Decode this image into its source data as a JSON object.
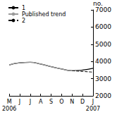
{
  "chart_data": {
    "type": "line",
    "categories": [
      "M\n2006",
      "J",
      "J",
      "A",
      "S",
      "O",
      "N",
      "D",
      "J\n2007"
    ],
    "series": [
      {
        "name": "1",
        "color": "#000000",
        "line_style": "solid",
        "values": [
          3800,
          3920,
          3950,
          3850,
          3700,
          3560,
          3460,
          3500,
          3600
        ]
      },
      {
        "name": "Published trend",
        "color": "#9a9a9a",
        "line_style": "solid",
        "values": [
          3800,
          3920,
          3950,
          3850,
          3700,
          3560,
          3460,
          3470,
          null
        ]
      },
      {
        "name": "2",
        "color": "#000000",
        "line_style": "dashed",
        "values": [
          null,
          null,
          null,
          null,
          null,
          null,
          3460,
          3420,
          3380
        ]
      }
    ],
    "y_label": "no.",
    "ylim": [
      2000,
      7000
    ],
    "yticks": [
      2000,
      3000,
      4000,
      5000,
      6000,
      7000
    ],
    "grid": false,
    "legend": "top-left"
  }
}
